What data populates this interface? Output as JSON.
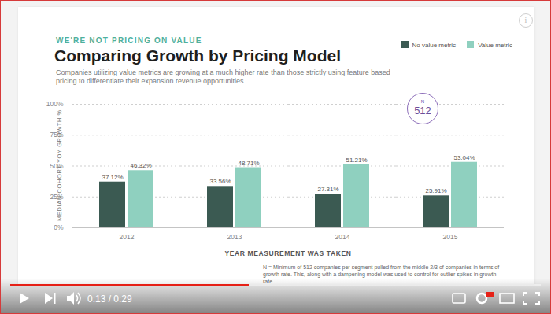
{
  "chart_data": {
    "type": "bar",
    "kicker": "WE'RE NOT PRICING ON VALUE",
    "title": "Comparing Growth by Pricing Model",
    "subtitle": "Companies utilizing value metrics are growing at a much higher rate than those strictly using feature based pricing to differentiate their expansion revenue opportunities.",
    "x_label": "YEAR MEASUREMENT WAS TAKEN",
    "y_label": "MEDIAN COHORT YOY GROWTH %",
    "categories": [
      "2012",
      "2013",
      "2014",
      "2015"
    ],
    "series": [
      {
        "name": "No value metric",
        "color": "#3b5a52",
        "values": [
          37.12,
          33.56,
          27.31,
          25.91
        ],
        "value_labels": [
          "37.12%",
          "33.56%",
          "27.31%",
          "25.91%"
        ]
      },
      {
        "name": "Value metric",
        "color": "#8fd0bf",
        "values": [
          46.32,
          48.71,
          51.21,
          53.04
        ],
        "value_labels": [
          "46.32%",
          "48.71%",
          "51.21%",
          "53.04%"
        ]
      }
    ],
    "ylim": [
      0,
      100
    ],
    "yticks": [
      {
        "value": 0,
        "label": "0%"
      },
      {
        "value": 25,
        "label": "25%"
      },
      {
        "value": 50,
        "label": "50%"
      },
      {
        "value": 75,
        "label": "75%"
      },
      {
        "value": 100,
        "label": "100%"
      }
    ],
    "grid": true,
    "legend": "top-right",
    "data_labels": true,
    "sample_badge": {
      "label": "N",
      "value": 512
    },
    "footnote": "N = Minimum of 512 companies per segment pulled from the middle 2/3 of companies in terms of growth rate. This, along with a dampening model was used to control for outlier spikes in growth rate."
  },
  "video_player": {
    "time": "0:13 / 0:29"
  }
}
